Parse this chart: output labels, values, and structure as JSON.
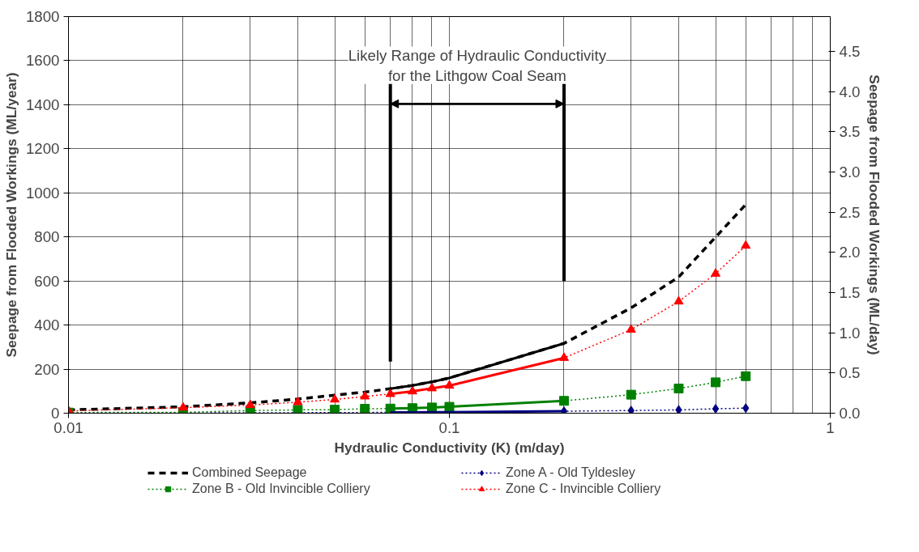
{
  "chart_data": {
    "type": "line",
    "xlabel": "Hydraulic Conductivity (K) (m/day)",
    "ylabel": "Seepage from Flooded Workings (ML/year)",
    "y2label": "Seepage from Flooded Workings (ML/day)",
    "log": "x",
    "grid": true,
    "legend": "bottom",
    "x": [
      0.01,
      0.02,
      0.03,
      0.04,
      0.05,
      0.06,
      0.07,
      0.08,
      0.09,
      0.1,
      0.2,
      0.3,
      0.4,
      0.5,
      0.6
    ],
    "xlim": [
      0.01,
      1
    ],
    "xticks": [
      0.01,
      0.1,
      1
    ],
    "ylim": [
      0,
      1800
    ],
    "yticks": [
      0,
      200,
      400,
      600,
      800,
      1000,
      1200,
      1400,
      1600,
      1800
    ],
    "y2lim": [
      0,
      4.9315
    ],
    "y2ticks": [
      {
        "value": 0,
        "label": "0.0"
      },
      {
        "value": 0.5,
        "label": "0.5"
      },
      {
        "value": 1,
        "label": "1.0"
      },
      {
        "value": 1.5,
        "label": "1.5"
      },
      {
        "value": 2,
        "label": "2.0"
      },
      {
        "value": 2.5,
        "label": "2.5"
      },
      {
        "value": 3,
        "label": "3.0"
      },
      {
        "value": 3.5,
        "label": "3.5"
      },
      {
        "value": 4,
        "label": "4.0"
      },
      {
        "value": 4.5,
        "label": "4.5"
      }
    ],
    "series": [
      {
        "name": "Combined Seepage",
        "color": "#000000",
        "line_style": "dashed",
        "marker": "none",
        "values": [
          15,
          29,
          47,
          64,
          82,
          96,
          111,
          126,
          142,
          160,
          317,
          478,
          618,
          799,
          947
        ]
      },
      {
        "name": "Zone A - Old Tyldesley",
        "color": "#000080",
        "line_style": "dotted",
        "marker": "diamond",
        "values": [
          1,
          1,
          2,
          2,
          3,
          3,
          4,
          4,
          5,
          5,
          9,
          12,
          15,
          20,
          23
        ]
      },
      {
        "name": "Zone B - Old Invincible Colliery",
        "color": "#008000",
        "line_style": "dotted",
        "marker": "square",
        "values": [
          3,
          4,
          12,
          15,
          16,
          20,
          21,
          23,
          26,
          29,
          56,
          84,
          112,
          140,
          168
        ]
      },
      {
        "name": "Zone C - Invincible Colliery",
        "color": "#ff0000",
        "line_style": "dotted",
        "marker": "triangle",
        "values": [
          10,
          25,
          37,
          50,
          62,
          76,
          87,
          99,
          113,
          125,
          251,
          379,
          507,
          633,
          760
        ]
      },
      {
        "color": "#000000",
        "line_style": "solid",
        "marker": "none",
        "x": [
          0.07,
          0.08,
          0.09,
          0.1,
          0.2
        ],
        "values": [
          111,
          126,
          142,
          160,
          317
        ]
      },
      {
        "color": "#000080",
        "line_style": "solid",
        "marker": "none",
        "x": [
          0.07,
          0.08,
          0.09,
          0.1,
          0.2
        ],
        "values": [
          4,
          4,
          5,
          5,
          9
        ]
      },
      {
        "color": "#008000",
        "line_style": "solid",
        "marker": "none",
        "x": [
          0.07,
          0.08,
          0.09,
          0.1,
          0.2
        ],
        "values": [
          21,
          23,
          26,
          29,
          56
        ]
      },
      {
        "color": "#ff0000",
        "line_style": "solid",
        "marker": "none",
        "x": [
          0.07,
          0.08,
          0.09,
          0.1,
          0.2
        ],
        "values": [
          87,
          99,
          113,
          125,
          251
        ]
      }
    ],
    "ref_lines": [
      {
        "axis": "x",
        "value": 0.07,
        "color": "#000000"
      },
      {
        "axis": "x",
        "value": 0.2,
        "color": "#000000"
      }
    ],
    "annotations": [
      "Likely Range of Hydraulic Conductivity\nfor the Lithgow Coal Seam"
    ]
  }
}
